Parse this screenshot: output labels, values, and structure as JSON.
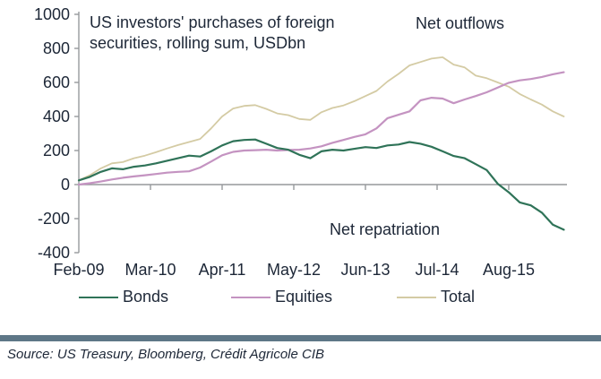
{
  "colors": {
    "text": "#1d2737",
    "axis": "#96999c",
    "divider": "#5e7787",
    "background": "#ffffff"
  },
  "source_line": "Source: US Treasury, Bloomberg, Crédit Agricole CIB",
  "chart_data": {
    "type": "line",
    "title": "US investors' purchases of foreign securities, rolling sum, USDbn",
    "title_lines": [
      "US investors' purchases of foreign",
      "securities, rolling sum, USDbn"
    ],
    "unit": "USDbn",
    "annotations": {
      "outflows": "Net outflows",
      "repatriation": "Net repatriation"
    },
    "grid": false,
    "legend_position": "bottom",
    "y_axis": {
      "min": -400,
      "max": 1000,
      "tick_step": 200
    },
    "x_axis": {
      "tick_labels": [
        "Feb-09",
        "Mar-10",
        "Apr-11",
        "May-12",
        "Jun-13",
        "Jul-14",
        "Aug-15"
      ],
      "tick_month_index": [
        0,
        13,
        26,
        39,
        52,
        65,
        78
      ],
      "first_point_label": "Feb-09",
      "month_step_between_points": 2,
      "last_month_index": 88
    },
    "series": [
      {
        "name": "Bonds",
        "color": "#2f7358",
        "values": [
          25,
          45,
          75,
          95,
          90,
          105,
          112,
          125,
          140,
          155,
          170,
          165,
          195,
          230,
          255,
          262,
          265,
          240,
          215,
          205,
          175,
          155,
          195,
          205,
          200,
          210,
          220,
          215,
          230,
          235,
          250,
          240,
          222,
          195,
          168,
          155,
          120,
          85,
          5,
          -45,
          -105,
          -122,
          -165,
          -235,
          -265
        ]
      },
      {
        "name": "Equities",
        "color": "#c493c1",
        "values": [
          0,
          8,
          18,
          30,
          40,
          48,
          55,
          62,
          70,
          75,
          78,
          100,
          135,
          172,
          192,
          200,
          202,
          205,
          200,
          203,
          205,
          212,
          225,
          245,
          262,
          280,
          295,
          330,
          390,
          410,
          430,
          495,
          510,
          505,
          478,
          500,
          520,
          542,
          570,
          598,
          612,
          620,
          632,
          648,
          660
        ]
      },
      {
        "name": "Total",
        "color": "#d4cba4",
        "values": [
          25,
          55,
          95,
          125,
          132,
          155,
          170,
          190,
          212,
          232,
          250,
          268,
          330,
          400,
          447,
          462,
          467,
          445,
          418,
          408,
          385,
          380,
          425,
          450,
          465,
          490,
          520,
          550,
          605,
          650,
          700,
          720,
          740,
          748,
          705,
          688,
          640,
          625,
          600,
          575,
          532,
          500,
          470,
          430,
          400
        ]
      }
    ]
  }
}
